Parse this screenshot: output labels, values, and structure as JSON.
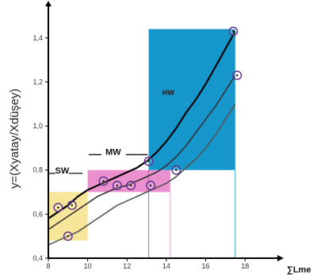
{
  "chart_data": {
    "type": "line",
    "title": "",
    "xlabel": "∑Lme",
    "ylabel": "y=(Xyatay/Xdüşey)",
    "xlim": [
      8,
      19
    ],
    "ylim": [
      0.4,
      1.5
    ],
    "x_ticks": [
      8,
      10,
      12,
      14,
      16,
      18
    ],
    "y_ticks": [
      0.4,
      0.6,
      0.8,
      1.0,
      1.2,
      1.4
    ],
    "x_tick_labels": [
      "8",
      "10",
      "12",
      "14",
      "16",
      "18"
    ],
    "y_tick_labels": [
      "0,4",
      "0,6",
      "0,8",
      "1,0",
      "1,2",
      "1,4"
    ],
    "grid": false,
    "colors": {
      "sw": "#f7e69a",
      "mw": "#ec8fcf",
      "hw": "#1597cc",
      "upper_curve": "#000000",
      "middle_curve": "#333333",
      "lower_curve": "#555555",
      "marker": "#5a2d8a",
      "axis": "#000000",
      "hw_drop_line": "#2f9fb8",
      "mw_drop_line": "#e0a7d6"
    },
    "zones": [
      {
        "name": "SW",
        "label": "SW",
        "x_range": [
          8,
          10
        ],
        "y_range": [
          0.48,
          0.7
        ]
      },
      {
        "name": "MW",
        "label": "MW",
        "x_range": [
          10,
          14.2
        ],
        "y_range": [
          0.7,
          0.8
        ]
      },
      {
        "name": "HW",
        "label": "HW",
        "x_range": [
          13.1,
          17.5
        ],
        "y_range": [
          0.8,
          1.44
        ]
      }
    ],
    "drop_lines": [
      {
        "x": 13.1,
        "from": 0.8,
        "to": 0.4,
        "color_key": "hw_drop_line"
      },
      {
        "x": 14.2,
        "from": 0.7,
        "to": 0.4,
        "color_key": "mw_drop_line"
      },
      {
        "x": 17.5,
        "from": 0.8,
        "to": 0.4,
        "color_key": "hw_drop_line"
      }
    ],
    "series": [
      {
        "x": [
          8,
          8.5,
          9,
          9.5,
          10,
          10.5,
          11,
          11.5,
          12,
          12.5,
          13,
          13.5,
          14,
          14.5,
          15,
          15.5,
          16,
          16.5,
          17,
          17.5
        ],
        "values": [
          0.58,
          0.61,
          0.64,
          0.68,
          0.71,
          0.73,
          0.75,
          0.77,
          0.79,
          0.81,
          0.84,
          0.88,
          0.93,
          0.99,
          1.06,
          1.12,
          1.19,
          1.27,
          1.35,
          1.43
        ],
        "color_key": "upper_curve"
      },
      {
        "x": [
          8,
          8.5,
          9,
          9.5,
          10,
          10.5,
          11,
          11.5,
          12,
          12.5,
          13,
          13.5,
          14,
          14.5,
          15,
          15.5,
          16,
          16.5,
          17,
          17.5
        ],
        "values": [
          0.53,
          0.56,
          0.59,
          0.62,
          0.65,
          0.68,
          0.7,
          0.72,
          0.73,
          0.75,
          0.77,
          0.79,
          0.82,
          0.86,
          0.91,
          0.97,
          1.03,
          1.09,
          1.16,
          1.23
        ],
        "color_key": "middle_curve"
      },
      {
        "x": [
          8,
          8.5,
          9,
          9.5,
          10,
          10.5,
          11,
          11.5,
          12,
          12.5,
          13,
          13.5,
          14,
          14.5,
          15,
          15.5,
          16,
          16.5,
          17,
          17.5
        ],
        "values": [
          0.46,
          0.48,
          0.5,
          0.52,
          0.55,
          0.58,
          0.61,
          0.64,
          0.66,
          0.68,
          0.7,
          0.72,
          0.74,
          0.77,
          0.81,
          0.85,
          0.9,
          0.96,
          1.03,
          1.1
        ],
        "color_key": "lower_curve"
      }
    ],
    "points": [
      {
        "x": 8.5,
        "y": 0.63
      },
      {
        "x": 9.2,
        "y": 0.64
      },
      {
        "x": 9.0,
        "y": 0.5
      },
      {
        "x": 10.8,
        "y": 0.75
      },
      {
        "x": 11.5,
        "y": 0.73
      },
      {
        "x": 12.2,
        "y": 0.73
      },
      {
        "x": 13.2,
        "y": 0.73
      },
      {
        "x": 13.1,
        "y": 0.84
      },
      {
        "x": 14.5,
        "y": 0.8
      },
      {
        "x": 17.4,
        "y": 1.43
      },
      {
        "x": 17.6,
        "y": 1.23
      }
    ]
  }
}
